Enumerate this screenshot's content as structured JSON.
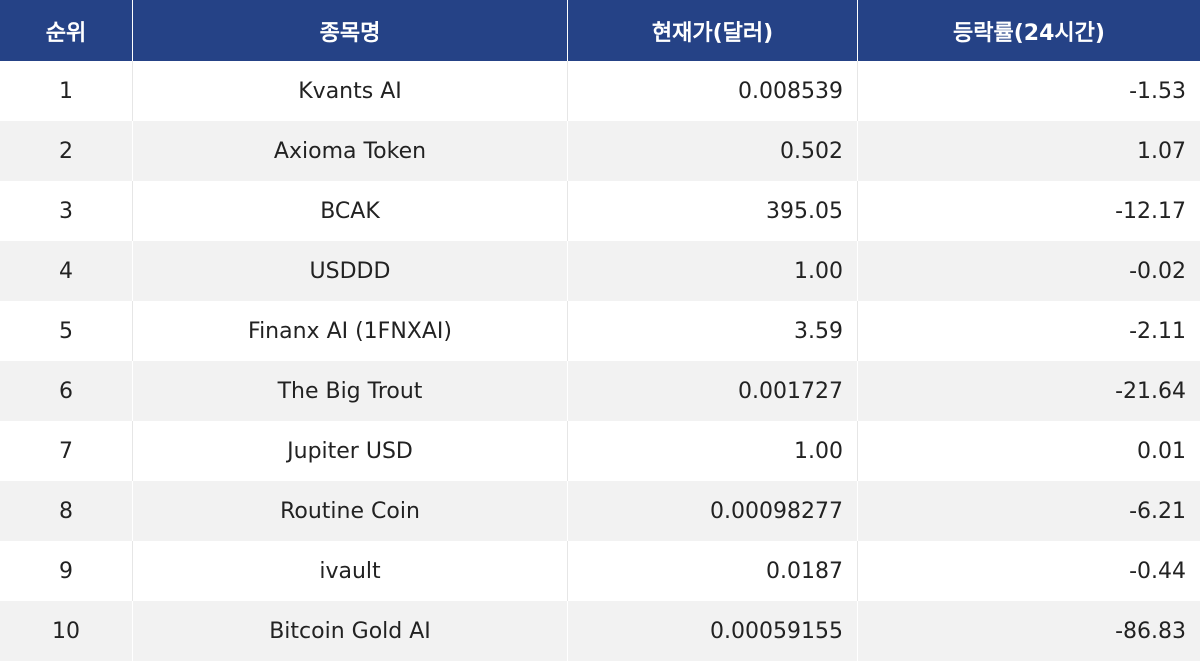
{
  "table": {
    "headers": {
      "rank": "순위",
      "name": "종목명",
      "price": "현재가(달러)",
      "change": "등락률(24시간)"
    },
    "rows": [
      {
        "rank": "1",
        "name": "Kvants AI",
        "price": "0.008539",
        "change": "-1.53"
      },
      {
        "rank": "2",
        "name": "Axioma Token",
        "price": "0.502",
        "change": "1.07"
      },
      {
        "rank": "3",
        "name": "BCAK",
        "price": "395.05",
        "change": "-12.17"
      },
      {
        "rank": "4",
        "name": "USDDD",
        "price": "1.00",
        "change": "-0.02"
      },
      {
        "rank": "5",
        "name": "Finanx AI (1FNXAI)",
        "price": "3.59",
        "change": "-2.11"
      },
      {
        "rank": "6",
        "name": "The Big Trout",
        "price": "0.001727",
        "change": "-21.64"
      },
      {
        "rank": "7",
        "name": "Jupiter USD",
        "price": "1.00",
        "change": "0.01"
      },
      {
        "rank": "8",
        "name": "Routine Coin",
        "price": "0.00098277",
        "change": "-6.21"
      },
      {
        "rank": "9",
        "name": "ivault",
        "price": "0.0187",
        "change": "-0.44"
      },
      {
        "rank": "10",
        "name": "Bitcoin Gold AI",
        "price": "0.00059155",
        "change": "-86.83"
      }
    ],
    "colors": {
      "header_bg": "#254286",
      "header_text": "#ffffff",
      "row_even_bg": "#f2f2f2",
      "row_odd_bg": "#ffffff"
    }
  }
}
